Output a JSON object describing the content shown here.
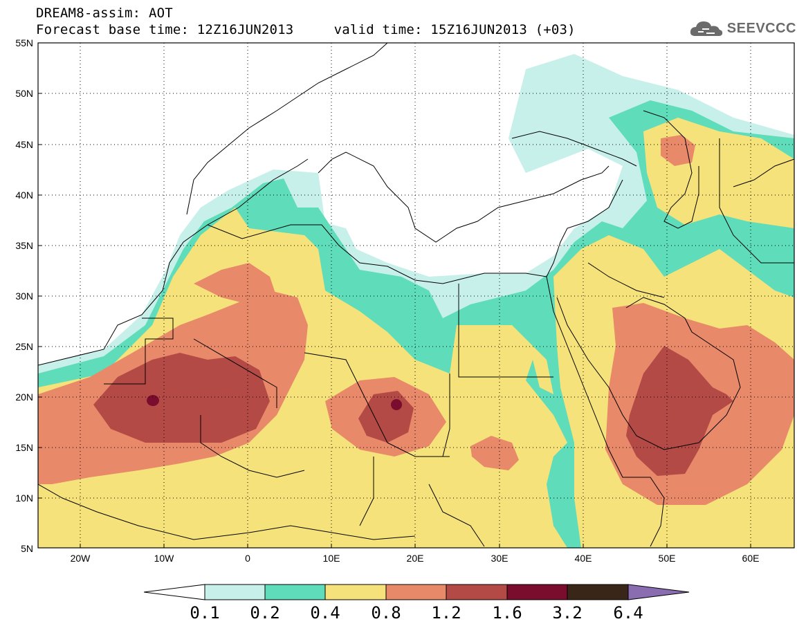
{
  "header": {
    "model_title": "DREAM8-assim: AOT",
    "forecast_line": "Forecast base time: 12Z16JUN2013     valid time: 15Z16JUN2013 (+03)",
    "logo_text": "SEEVCCC",
    "logo_icon": "cloud-icon"
  },
  "map": {
    "lat_labels": [
      "55N",
      "50N",
      "45N",
      "40N",
      "35N",
      "30N",
      "25N",
      "20N",
      "15N",
      "10N",
      "5N"
    ],
    "lon_labels": [
      "20W",
      "10W",
      "0",
      "10E",
      "20E",
      "30E",
      "40E",
      "50E",
      "60E"
    ],
    "lat_range": [
      5,
      55
    ],
    "lon_range": [
      -25,
      65
    ],
    "grid": "dotted"
  },
  "colorbar": {
    "levels": [
      "0.1",
      "0.2",
      "0.4",
      "0.8",
      "1.2",
      "1.6",
      "3.2",
      "6.4"
    ],
    "colors": [
      "#ffffff",
      "#c8f0ea",
      "#5fdcb9",
      "#f6e27a",
      "#e8896a",
      "#b34a45",
      "#7a0c2d",
      "#3a2618",
      "#8a6db0"
    ]
  }
}
